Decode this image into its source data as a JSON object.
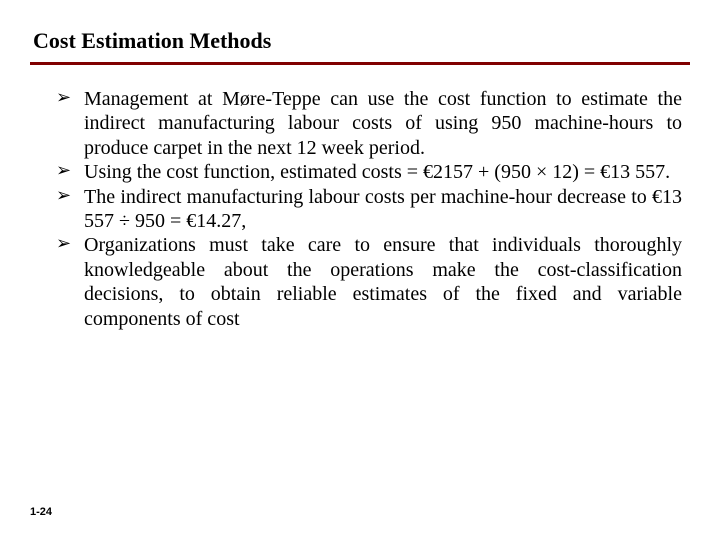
{
  "slide": {
    "title": "Cost Estimation Methods",
    "divider_color": "#800000",
    "bullets": [
      "Management at Møre-Teppe can use the cost function to estimate the indirect manufacturing labour costs of using 950 machine-hours to produce carpet in the next 12 week period.",
      "Using the cost function, estimated costs = €2157 + (950 × 12) = €13 557.",
      "The indirect manufacturing labour costs per machine-hour decrease to €13 557 ÷ 950 = €14.27,",
      "Organizations must take care to ensure that individuals thoroughly knowledgeable about the operations make the cost-classification decisions, to obtain reliable estimates of the fixed and variable components of cost"
    ],
    "page_number": "1-24",
    "bullet_marker": "➢"
  },
  "styles": {
    "title_fontsize": 22,
    "body_fontsize": 20,
    "page_fontsize": 11,
    "background_color": "#ffffff",
    "text_color": "#000000"
  }
}
